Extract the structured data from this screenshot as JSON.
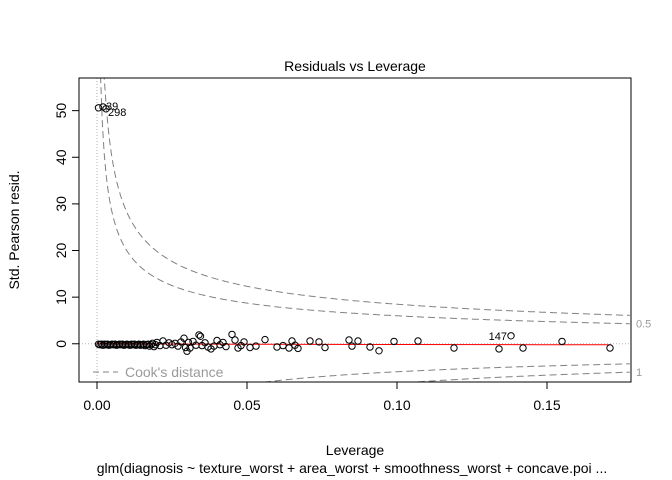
{
  "chart_data": {
    "type": "scatter",
    "title": "Residuals vs Leverage",
    "xlabel": "Leverage",
    "ylabel": "Std. Pearson resid.",
    "subtitle": "glm(diagnosis ~ texture_worst + area_worst + smoothness_worst + concave.poi ...",
    "xlim": [
      -0.006,
      0.178
    ],
    "ylim": [
      -8.2,
      57.0
    ],
    "xticks": [
      0.0,
      0.05,
      0.1,
      0.15
    ],
    "xtick_labels": [
      "0.00",
      "0.05",
      "0.10",
      "0.15"
    ],
    "yticks": [
      0,
      10,
      20,
      30,
      40,
      50
    ],
    "ytick_labels": [
      "0",
      "10",
      "20",
      "30",
      "40",
      "50"
    ],
    "grid": false,
    "legend": {
      "position": "bottom-left",
      "label": "Cook's distance"
    },
    "cooks_levels": [
      {
        "level": 0.5,
        "label": "0.5"
      },
      {
        "level": 1,
        "label": "1"
      }
    ],
    "n_params": 8,
    "colors": {
      "points": "#000000",
      "smoother": "#ff0000",
      "cooks": "#808080",
      "reference": "#b0b0b0"
    },
    "points": [
      {
        "x": 0.0005,
        "y": -0.1
      },
      {
        "x": 0.001,
        "y": -0.2
      },
      {
        "x": 0.0015,
        "y": -0.1
      },
      {
        "x": 0.002,
        "y": -0.3
      },
      {
        "x": 0.0025,
        "y": -0.1
      },
      {
        "x": 0.003,
        "y": -0.2
      },
      {
        "x": 0.0035,
        "y": -0.1
      },
      {
        "x": 0.004,
        "y": -0.3
      },
      {
        "x": 0.0045,
        "y": -0.2
      },
      {
        "x": 0.005,
        "y": -0.1
      },
      {
        "x": 0.0055,
        "y": -0.2
      },
      {
        "x": 0.006,
        "y": -0.1
      },
      {
        "x": 0.0065,
        "y": -0.3
      },
      {
        "x": 0.007,
        "y": -0.2
      },
      {
        "x": 0.0075,
        "y": -0.1
      },
      {
        "x": 0.008,
        "y": -0.2
      },
      {
        "x": 0.0085,
        "y": -0.1
      },
      {
        "x": 0.009,
        "y": -0.3
      },
      {
        "x": 0.0095,
        "y": -0.2
      },
      {
        "x": 0.01,
        "y": -0.1
      },
      {
        "x": 0.0105,
        "y": -0.2
      },
      {
        "x": 0.011,
        "y": -0.3
      },
      {
        "x": 0.0115,
        "y": -0.1
      },
      {
        "x": 0.012,
        "y": -0.2
      },
      {
        "x": 0.0125,
        "y": -0.1
      },
      {
        "x": 0.013,
        "y": -0.3
      },
      {
        "x": 0.0135,
        "y": -0.2
      },
      {
        "x": 0.014,
        "y": -0.1
      },
      {
        "x": 0.0145,
        "y": -0.3
      },
      {
        "x": 0.015,
        "y": -0.2
      },
      {
        "x": 0.0155,
        "y": -0.1
      },
      {
        "x": 0.016,
        "y": -0.4
      },
      {
        "x": 0.0165,
        "y": -0.2
      },
      {
        "x": 0.017,
        "y": -0.1
      },
      {
        "x": 0.0175,
        "y": -0.5
      },
      {
        "x": 0.018,
        "y": -0.2
      },
      {
        "x": 0.0185,
        "y": 0.1
      },
      {
        "x": 0.019,
        "y": -0.6
      },
      {
        "x": 0.0195,
        "y": -0.2
      },
      {
        "x": 0.02,
        "y": 0.3
      },
      {
        "x": 0.021,
        "y": -0.4
      },
      {
        "x": 0.022,
        "y": 0.6
      },
      {
        "x": 0.023,
        "y": -0.3
      },
      {
        "x": 0.024,
        "y": 0.2
      },
      {
        "x": 0.025,
        "y": -0.2
      },
      {
        "x": 0.026,
        "y": 0.1
      },
      {
        "x": 0.027,
        "y": -0.5
      },
      {
        "x": 0.028,
        "y": 0.4
      },
      {
        "x": 0.029,
        "y": 1.2
      },
      {
        "x": 0.0295,
        "y": -0.8
      },
      {
        "x": 0.03,
        "y": -1.6
      },
      {
        "x": 0.0305,
        "y": 0.3
      },
      {
        "x": 0.031,
        "y": -0.9
      },
      {
        "x": 0.032,
        "y": 0.5
      },
      {
        "x": 0.033,
        "y": -0.3
      },
      {
        "x": 0.034,
        "y": 1.9
      },
      {
        "x": 0.0345,
        "y": 1.6
      },
      {
        "x": 0.035,
        "y": -0.4
      },
      {
        "x": 0.036,
        "y": 0.2
      },
      {
        "x": 0.037,
        "y": -0.7
      },
      {
        "x": 0.038,
        "y": -1.1
      },
      {
        "x": 0.039,
        "y": -0.5
      },
      {
        "x": 0.04,
        "y": 0.7
      },
      {
        "x": 0.041,
        "y": -0.2
      },
      {
        "x": 0.042,
        "y": 0.3
      },
      {
        "x": 0.043,
        "y": -0.6
      },
      {
        "x": 0.045,
        "y": 2.0
      },
      {
        "x": 0.046,
        "y": 0.8
      },
      {
        "x": 0.047,
        "y": -0.9
      },
      {
        "x": 0.048,
        "y": -0.4
      },
      {
        "x": 0.049,
        "y": 0.4
      },
      {
        "x": 0.051,
        "y": -0.8
      },
      {
        "x": 0.053,
        "y": -0.5
      },
      {
        "x": 0.056,
        "y": 0.9
      },
      {
        "x": 0.06,
        "y": -0.7
      },
      {
        "x": 0.062,
        "y": -0.4
      },
      {
        "x": 0.064,
        "y": -0.9
      },
      {
        "x": 0.065,
        "y": 0.6
      },
      {
        "x": 0.066,
        "y": -0.3
      },
      {
        "x": 0.067,
        "y": -1.0
      },
      {
        "x": 0.071,
        "y": 0.6
      },
      {
        "x": 0.074,
        "y": 0.4
      },
      {
        "x": 0.076,
        "y": -0.8
      },
      {
        "x": 0.084,
        "y": 0.8
      },
      {
        "x": 0.085,
        "y": -0.5
      },
      {
        "x": 0.087,
        "y": 0.6
      },
      {
        "x": 0.091,
        "y": -0.7
      },
      {
        "x": 0.094,
        "y": -1.5
      },
      {
        "x": 0.099,
        "y": 0.5
      },
      {
        "x": 0.107,
        "y": 0.6
      },
      {
        "x": 0.119,
        "y": -0.9
      },
      {
        "x": 0.134,
        "y": -1.1
      },
      {
        "x": 0.138,
        "y": 1.7
      },
      {
        "x": 0.142,
        "y": -0.9
      },
      {
        "x": 0.155,
        "y": 0.5
      },
      {
        "x": 0.171,
        "y": -0.9
      },
      {
        "x": 0.0005,
        "y": 50.6
      },
      {
        "x": 0.002,
        "y": 50.8
      },
      {
        "x": 0.003,
        "y": 50.4
      }
    ],
    "labels": [
      {
        "x": 0.002,
        "y": 50.8,
        "text": "39"
      },
      {
        "x": 0.003,
        "y": 50.4,
        "text": "298"
      },
      {
        "x": 0.138,
        "y": 1.7,
        "text": "147"
      }
    ],
    "smoother": [
      {
        "x": 0.0,
        "y": 0.0
      },
      {
        "x": 0.02,
        "y": -0.05
      },
      {
        "x": 0.05,
        "y": -0.1
      },
      {
        "x": 0.1,
        "y": -0.15
      },
      {
        "x": 0.15,
        "y": -0.2
      },
      {
        "x": 0.171,
        "y": -0.22
      }
    ]
  }
}
